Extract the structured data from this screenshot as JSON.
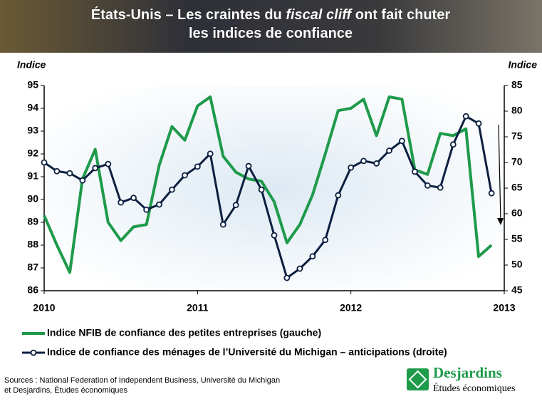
{
  "chart_data": {
    "type": "line",
    "title": [
      [
        "États-Unis – Les craintes du ",
        "fiscal cliff",
        " ont fait chuter"
      ],
      [
        "les indices de confiance"
      ]
    ],
    "ylabel": "Indice",
    "y2label": "Indice",
    "x": [
      2010,
      2010.083,
      2010.167,
      2010.25,
      2010.333,
      2010.417,
      2010.5,
      2010.583,
      2010.667,
      2010.75,
      2010.833,
      2010.917,
      2011,
      2011.083,
      2011.167,
      2011.25,
      2011.333,
      2011.417,
      2011.5,
      2011.583,
      2011.667,
      2011.75,
      2011.833,
      2011.917,
      2012,
      2012.083,
      2012.167,
      2012.25,
      2012.333,
      2012.417,
      2012.5,
      2012.583,
      2012.667,
      2012.75,
      2012.833,
      2012.917
    ],
    "xlim": [
      2010,
      2013
    ],
    "xticks": [
      2010,
      2011,
      2012,
      2013
    ],
    "ylim": [
      86,
      95
    ],
    "yticks": [
      86,
      87,
      88,
      89,
      90,
      91,
      92,
      93,
      94,
      95
    ],
    "y2lim": [
      45,
      85
    ],
    "y2ticks": [
      45,
      50,
      55,
      60,
      65,
      70,
      75,
      80,
      85
    ],
    "grid": false,
    "series": [
      {
        "name": "Indice NFIB de confiance des petites entreprises (gauche)",
        "color": "#1e9a4b",
        "markers": false,
        "values": [
          89.3,
          88.0,
          86.8,
          90.9,
          92.2,
          89.0,
          88.2,
          88.8,
          88.9,
          91.5,
          93.2,
          92.6,
          94.1,
          94.5,
          91.9,
          91.2,
          90.9,
          90.8,
          89.9,
          88.1,
          88.9,
          90.2,
          92.0,
          93.9,
          94.0,
          94.4,
          92.8,
          94.5,
          94.4,
          91.3,
          91.1,
          92.9,
          92.8,
          93.1,
          87.5,
          88.0
        ]
      },
      {
        "name": "Indice de confiance des ménages de l’Université du Michigan – anticipations (droite)",
        "color": "#0d1f40",
        "axis": "y2",
        "markers": true,
        "values": [
          70.0,
          68.3,
          67.9,
          66.5,
          68.9,
          69.7,
          62.2,
          63.1,
          60.8,
          61.8,
          64.7,
          67.5,
          69.2,
          71.7,
          57.9,
          61.7,
          69.3,
          64.7,
          55.8,
          47.5,
          49.3,
          51.7,
          54.9,
          63.6,
          69.0,
          70.3,
          69.8,
          72.3,
          74.2,
          68.2,
          65.5,
          65.1,
          73.5,
          79.0,
          77.6,
          64.0
        ]
      }
    ],
    "sources": [
      "Sources : National Federation of Independent Business, Université du Michigan",
      "et Desjardins, Études économiques"
    ],
    "logo": {
      "name": "Desjardins",
      "subtitle": "Études économiques"
    }
  }
}
